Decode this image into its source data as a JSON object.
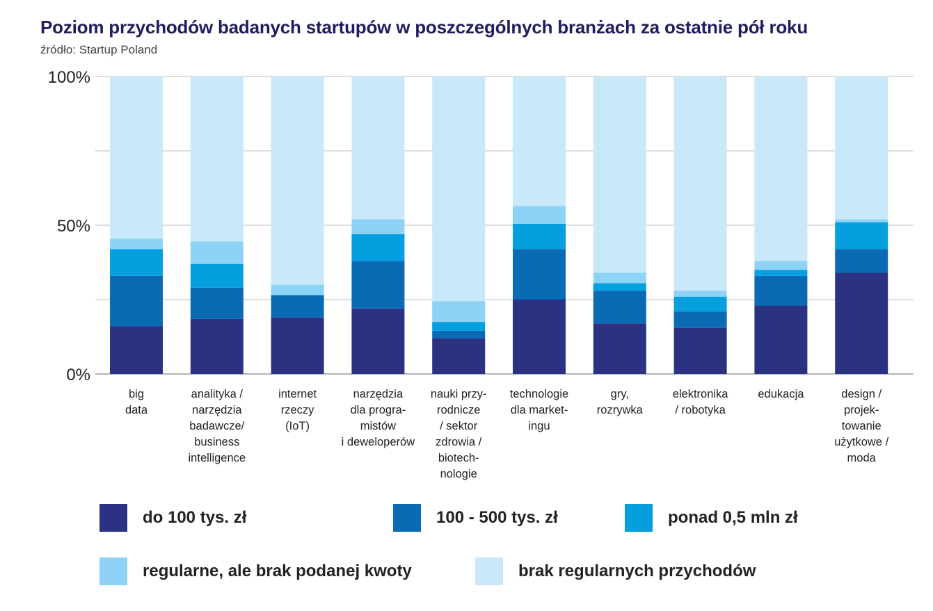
{
  "chart_data": {
    "type": "bar",
    "stacked": true,
    "title": "Poziom przychodów badanych startupów w poszczególnych branżach za ostatnie pół roku",
    "source": "źródło: Startup Poland",
    "ylim": [
      0,
      100
    ],
    "y_ticks": [
      {
        "value": 0,
        "label": "0%"
      },
      {
        "value": 50,
        "label": "50%"
      },
      {
        "value": 100,
        "label": "100%"
      }
    ],
    "grid_values": [
      25,
      50,
      75,
      100
    ],
    "categories": [
      "big\ndata",
      "analityka /\nnarzędzia\nbadawcze/\nbusiness\nintelligence",
      "internet\nrzeczy\n(IoT)",
      "narzędzia\ndla progra-\nmistów\ni deweloperów",
      "nauki przy-\nrodnicze\n/ sektor\nzdrowia /\nbiotech-\nnologie",
      "technologie\ndla market-\ningu",
      "gry,\nrozrywka",
      "elektronika\n/ robotyka",
      "edukacja",
      "design /\nprojek-\ntowanie\nużytkowe /\nmoda"
    ],
    "series": [
      {
        "name": "do 100 tys. zł",
        "color": "#2b3282",
        "values": [
          16,
          18.5,
          19,
          22,
          12,
          25,
          17,
          15.5,
          23,
          34
        ]
      },
      {
        "name": "100 - 500 tys. zł",
        "color": "#0a6ab3",
        "values": [
          17,
          10.5,
          7.5,
          16,
          2.5,
          17,
          11,
          5.5,
          10,
          8
        ]
      },
      {
        "name": "ponad 0,5 mln zł",
        "color": "#059fe0",
        "values": [
          9,
          8,
          0,
          9,
          3,
          8.5,
          2.5,
          5,
          2,
          9
        ]
      },
      {
        "name": "regularne, ale brak podanej kwoty",
        "color": "#8dd3f5",
        "values": [
          3.5,
          7.5,
          3.5,
          5,
          7,
          6,
          3.5,
          2,
          3,
          1
        ]
      },
      {
        "name": "brak regularnych przychodów",
        "color": "#c9e8fa",
        "values": [
          54.5,
          55.5,
          70,
          48,
          75.5,
          43.5,
          66,
          72,
          62,
          48
        ]
      }
    ]
  }
}
